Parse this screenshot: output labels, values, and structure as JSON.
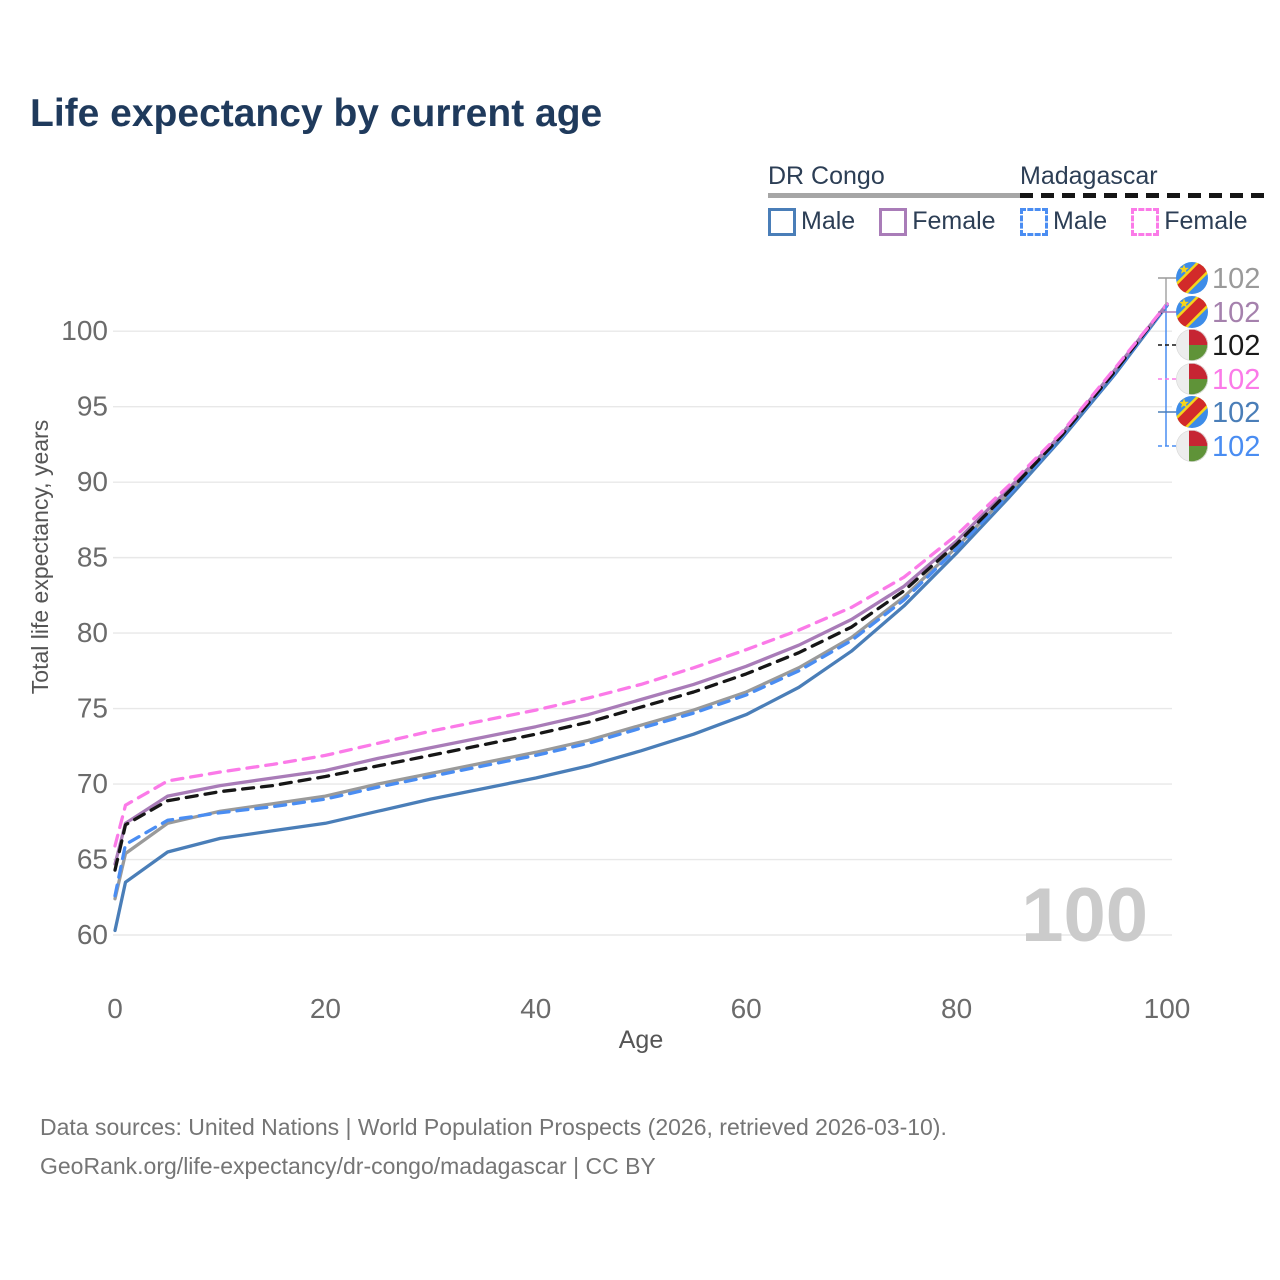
{
  "title": "Life expectancy by current age",
  "legend": {
    "groups": [
      {
        "title": "DR Congo",
        "underline_style": "solid",
        "underline_color": "#a6a6a6",
        "items": [
          {
            "label": "Male",
            "color": "#4a7eb8",
            "dash": false
          },
          {
            "label": "Female",
            "color": "#a97cb8",
            "dash": false
          }
        ]
      },
      {
        "title": "Madagascar",
        "underline_style": "dashed",
        "underline_color": "#151515",
        "items": [
          {
            "label": "Male",
            "color": "#4a8df2",
            "dash": true
          },
          {
            "label": "Female",
            "color": "#fb7ae8",
            "dash": true
          }
        ]
      }
    ]
  },
  "chart_data": {
    "type": "line",
    "title": "Life expectancy by current age",
    "xlabel": "Age",
    "ylabel": "Total life expectancy, years",
    "xlim": [
      0,
      100
    ],
    "ylim": [
      60,
      102
    ],
    "xticks": [
      0,
      20,
      40,
      60,
      80,
      100
    ],
    "yticks": [
      60,
      65,
      70,
      75,
      80,
      85,
      90,
      95,
      100
    ],
    "grid": "horizontal-only",
    "legend_position": "top-right",
    "watermark": "100",
    "ages": [
      0,
      1,
      5,
      10,
      15,
      20,
      25,
      30,
      35,
      40,
      45,
      50,
      55,
      60,
      65,
      70,
      75,
      80,
      85,
      90,
      95,
      100
    ],
    "series": [
      {
        "name": "DR Congo",
        "country": "dr-congo",
        "sex": "all",
        "color": "#9a9a9a",
        "dash": false,
        "row": 0,
        "endpoint_label": "102",
        "label_color": "#9a9a9a",
        "values": [
          62.4,
          65.4,
          67.4,
          68.2,
          68.7,
          69.2,
          70.0,
          70.7,
          71.4,
          72.1,
          72.9,
          73.9,
          74.9,
          76.1,
          77.7,
          79.7,
          82.4,
          85.7,
          89.3,
          93.1,
          97.3,
          101.7
        ]
      },
      {
        "name": "DR Congo Male",
        "country": "dr-congo",
        "sex": "male",
        "color": "#4a7eb8",
        "dash": false,
        "row": 4,
        "endpoint_label": "102",
        "label_color": "#4a7eb8",
        "values": [
          60.3,
          63.5,
          65.5,
          66.4,
          66.9,
          67.4,
          68.2,
          69.0,
          69.7,
          70.4,
          71.2,
          72.2,
          73.3,
          74.6,
          76.4,
          78.8,
          81.8,
          85.3,
          89.0,
          92.9,
          97.1,
          101.7
        ]
      },
      {
        "name": "Madagascar Male",
        "country": "madagascar",
        "sex": "male",
        "color": "#4a8df2",
        "dash": true,
        "row": 5,
        "endpoint_label": "102",
        "label_color": "#4a8df2",
        "values": [
          62.6,
          66.0,
          67.6,
          68.1,
          68.5,
          69.0,
          69.8,
          70.5,
          71.2,
          71.9,
          72.7,
          73.7,
          74.7,
          75.9,
          77.5,
          79.5,
          82.2,
          85.6,
          89.2,
          93.0,
          97.2,
          101.7
        ]
      },
      {
        "name": "DR Congo Female",
        "country": "dr-congo",
        "sex": "female",
        "color": "#a97cb8",
        "dash": false,
        "row": 1,
        "endpoint_label": "102",
        "label_color": "#a581ad",
        "values": [
          64.7,
          67.4,
          69.2,
          69.9,
          70.4,
          70.9,
          71.7,
          72.4,
          73.1,
          73.8,
          74.6,
          75.6,
          76.6,
          77.8,
          79.2,
          80.9,
          83.1,
          86.1,
          89.6,
          93.2,
          97.4,
          101.8
        ]
      },
      {
        "name": "Madagascar",
        "country": "madagascar",
        "sex": "all",
        "color": "#161616",
        "dash": true,
        "row": 2,
        "endpoint_label": "102",
        "label_color": "#1a1a1a",
        "values": [
          64.3,
          67.3,
          68.9,
          69.5,
          69.9,
          70.5,
          71.2,
          71.9,
          72.6,
          73.3,
          74.1,
          75.1,
          76.1,
          77.3,
          78.7,
          80.4,
          82.8,
          85.9,
          89.4,
          93.1,
          97.3,
          101.8
        ]
      },
      {
        "name": "Madagascar Female",
        "country": "madagascar",
        "sex": "female",
        "color": "#fb7ae8",
        "dash": true,
        "row": 3,
        "endpoint_label": "102",
        "label_color": "#fb7ae8",
        "values": [
          65.9,
          68.6,
          70.2,
          70.8,
          71.3,
          71.9,
          72.7,
          73.5,
          74.2,
          74.9,
          75.7,
          76.6,
          77.7,
          78.9,
          80.2,
          81.7,
          83.7,
          86.5,
          89.8,
          93.3,
          97.5,
          101.8
        ]
      }
    ]
  },
  "footer": {
    "line1": "Data sources: United Nations | World Population Prospects (2026, retrieved 2026-03-10).",
    "line2": "GeoRank.org/life-expectancy/dr-congo/madagascar | CC BY"
  },
  "colors": {
    "title_text": "#1f3a5c",
    "legend_text": "#2c3e55",
    "axis_tick_text": "#6b6b6b",
    "axis_label_text": "#555555",
    "gridline": "#e8e8e8",
    "footer_text": "#757575",
    "watermark": "#cbcbcb",
    "connector_up": "#a6a6a6",
    "connector_down": "#4a8df2"
  }
}
